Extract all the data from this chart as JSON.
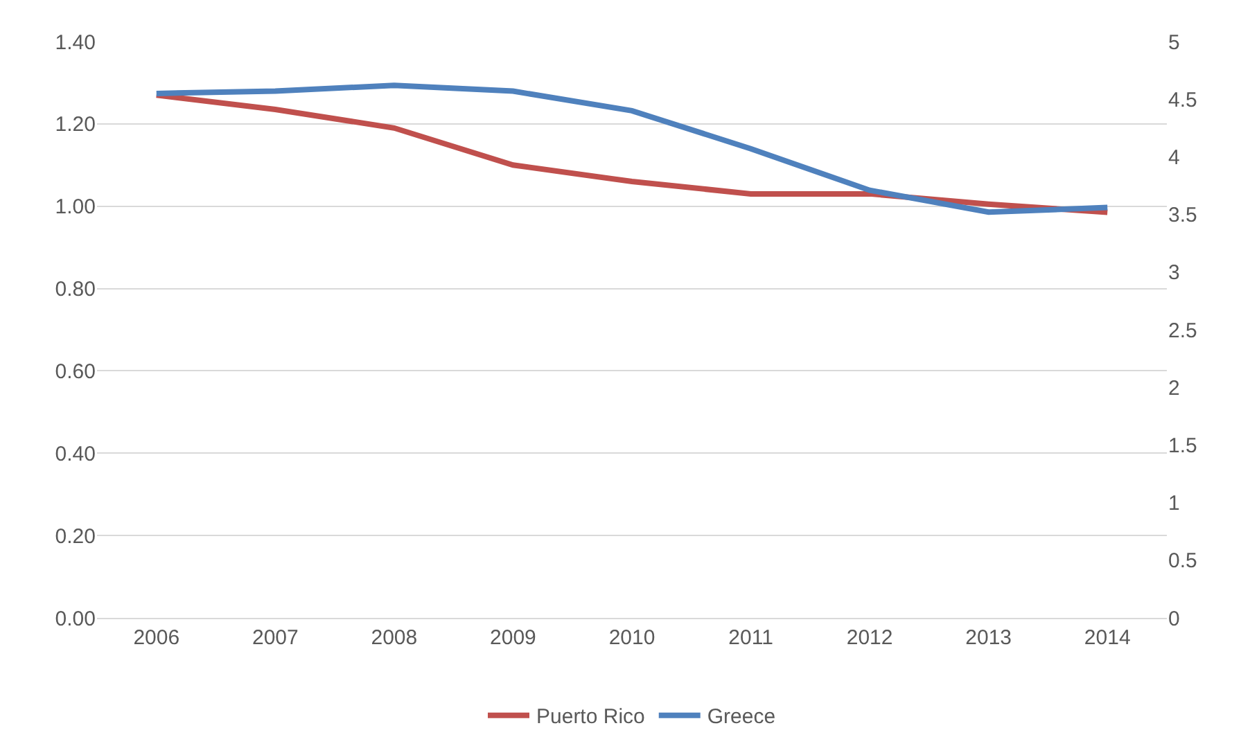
{
  "chart_data": {
    "type": "line",
    "categories": [
      "2006",
      "2007",
      "2008",
      "2009",
      "2010",
      "2011",
      "2012",
      "2013",
      "2014"
    ],
    "series": [
      {
        "name": "Puerto Rico",
        "color": "#c0504d",
        "values": [
          1.27,
          1.235,
          1.19,
          1.1,
          1.06,
          1.03,
          1.03,
          1.005,
          0.985
        ]
      },
      {
        "name": "Greece",
        "color": "#4f81bd",
        "axis": "y2",
        "values": [
          4.55,
          4.57,
          4.62,
          4.57,
          4.4,
          4.07,
          3.71,
          3.52,
          3.56
        ]
      }
    ],
    "ylim": [
      0,
      1.4
    ],
    "yticks": [
      {
        "value": 0,
        "label": "0.00"
      },
      {
        "value": 0.2,
        "label": "0.20"
      },
      {
        "value": 0.4,
        "label": "0.40"
      },
      {
        "value": 0.6,
        "label": "0.60"
      },
      {
        "value": 0.8,
        "label": "0.80"
      },
      {
        "value": 1.0,
        "label": "1.00"
      },
      {
        "value": 1.2,
        "label": "1.20"
      },
      {
        "value": 1.4,
        "label": "1.40"
      }
    ],
    "y2lim": [
      0,
      5
    ],
    "y2ticks": [
      0,
      0.5,
      1,
      1.5,
      2,
      2.5,
      3,
      3.5,
      4,
      4.5,
      5
    ],
    "grid": "y",
    "legend": "bottom",
    "marker": "none",
    "line_style": "solid"
  }
}
